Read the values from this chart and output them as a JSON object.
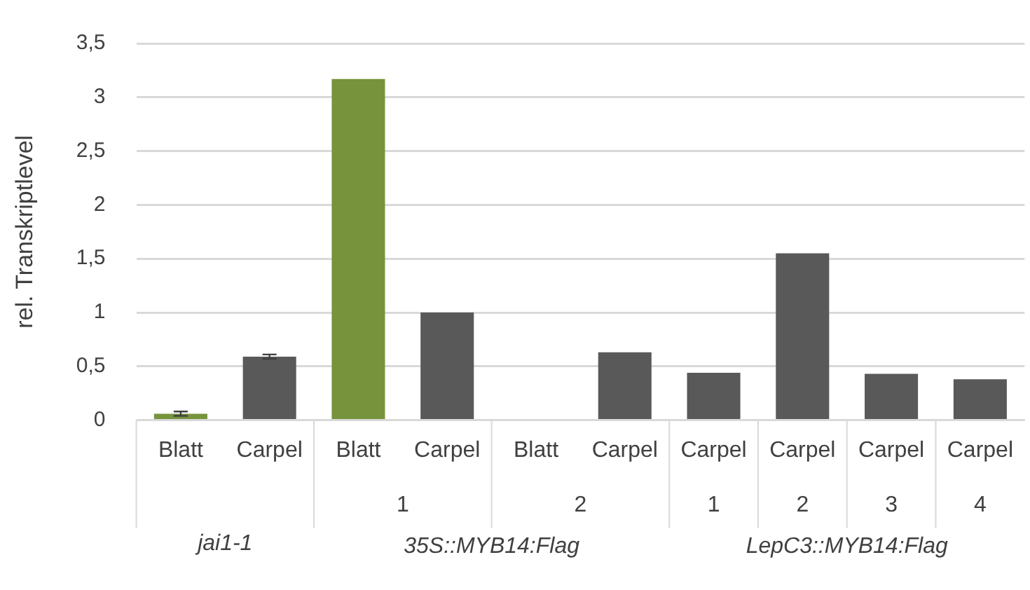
{
  "chart_data": {
    "type": "bar",
    "ylabel": "rel. Transkriptlevel",
    "categories": [
      "Blatt",
      "Carpel",
      "Blatt",
      "Carpel",
      "Blatt",
      "Carpel",
      "Carpel",
      "Carpel",
      "Carpel",
      "Carpel"
    ],
    "values": [
      0.06,
      0.59,
      3.17,
      1.0,
      0,
      0.63,
      0.44,
      1.55,
      0.43,
      0.38
    ],
    "errors": [
      0.02,
      0.02,
      null,
      null,
      null,
      null,
      null,
      null,
      null,
      null
    ],
    "colors": [
      "#77933c",
      "#595959",
      "#77933c",
      "#595959",
      "#77933c",
      "#595959",
      "#595959",
      "#595959",
      "#595959",
      "#595959"
    ],
    "ylim": [
      0,
      3.5
    ],
    "yticks": [
      {
        "value": 0,
        "label": "0"
      },
      {
        "value": 0.5,
        "label": "0,5"
      },
      {
        "value": 1,
        "label": "1"
      },
      {
        "value": 1.5,
        "label": "1,5"
      },
      {
        "value": 2,
        "label": "2"
      },
      {
        "value": 2.5,
        "label": "2,5"
      },
      {
        "value": 3,
        "label": "3"
      },
      {
        "value": 3.5,
        "label": "3,5"
      }
    ],
    "grid": "y",
    "legend": false,
    "annotations": [
      "1",
      "2",
      "1",
      "2",
      "3",
      "4",
      "jai1-1",
      "35S::MYB14:Flag",
      "LepC3::MYB14:Flag"
    ]
  }
}
